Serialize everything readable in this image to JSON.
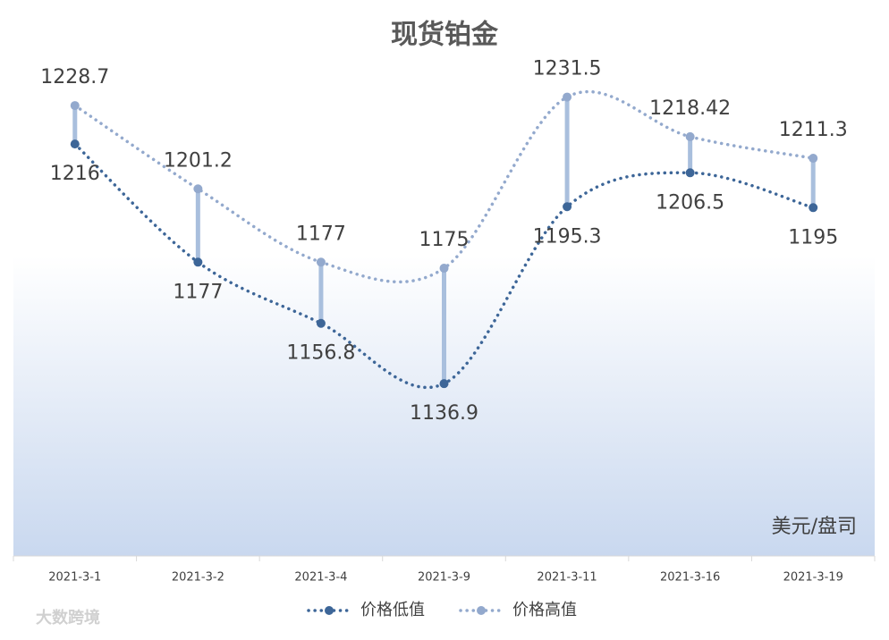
{
  "chart_data": {
    "type": "line",
    "title": "现货铂金",
    "categories": [
      "2021-3-1",
      "2021-3-2",
      "2021-3-4",
      "2021-3-9",
      "2021-3-11",
      "2021-3-16",
      "2021-3-19"
    ],
    "series": [
      {
        "name": "价格低值",
        "color": "#3d6698",
        "values": [
          1216,
          1177,
          1156.8,
          1136.9,
          1195.3,
          1206.5,
          1195
        ]
      },
      {
        "name": "价格高值",
        "color": "#93a9cd",
        "values": [
          1228.7,
          1201.2,
          1177,
          1175,
          1231.5,
          1218.42,
          1211.3
        ]
      }
    ],
    "ylim": [
      1080,
      1260
    ],
    "high_low_lines": true,
    "smooth": true,
    "unit_label": "美元/盘司",
    "watermark": "大数跨境"
  }
}
